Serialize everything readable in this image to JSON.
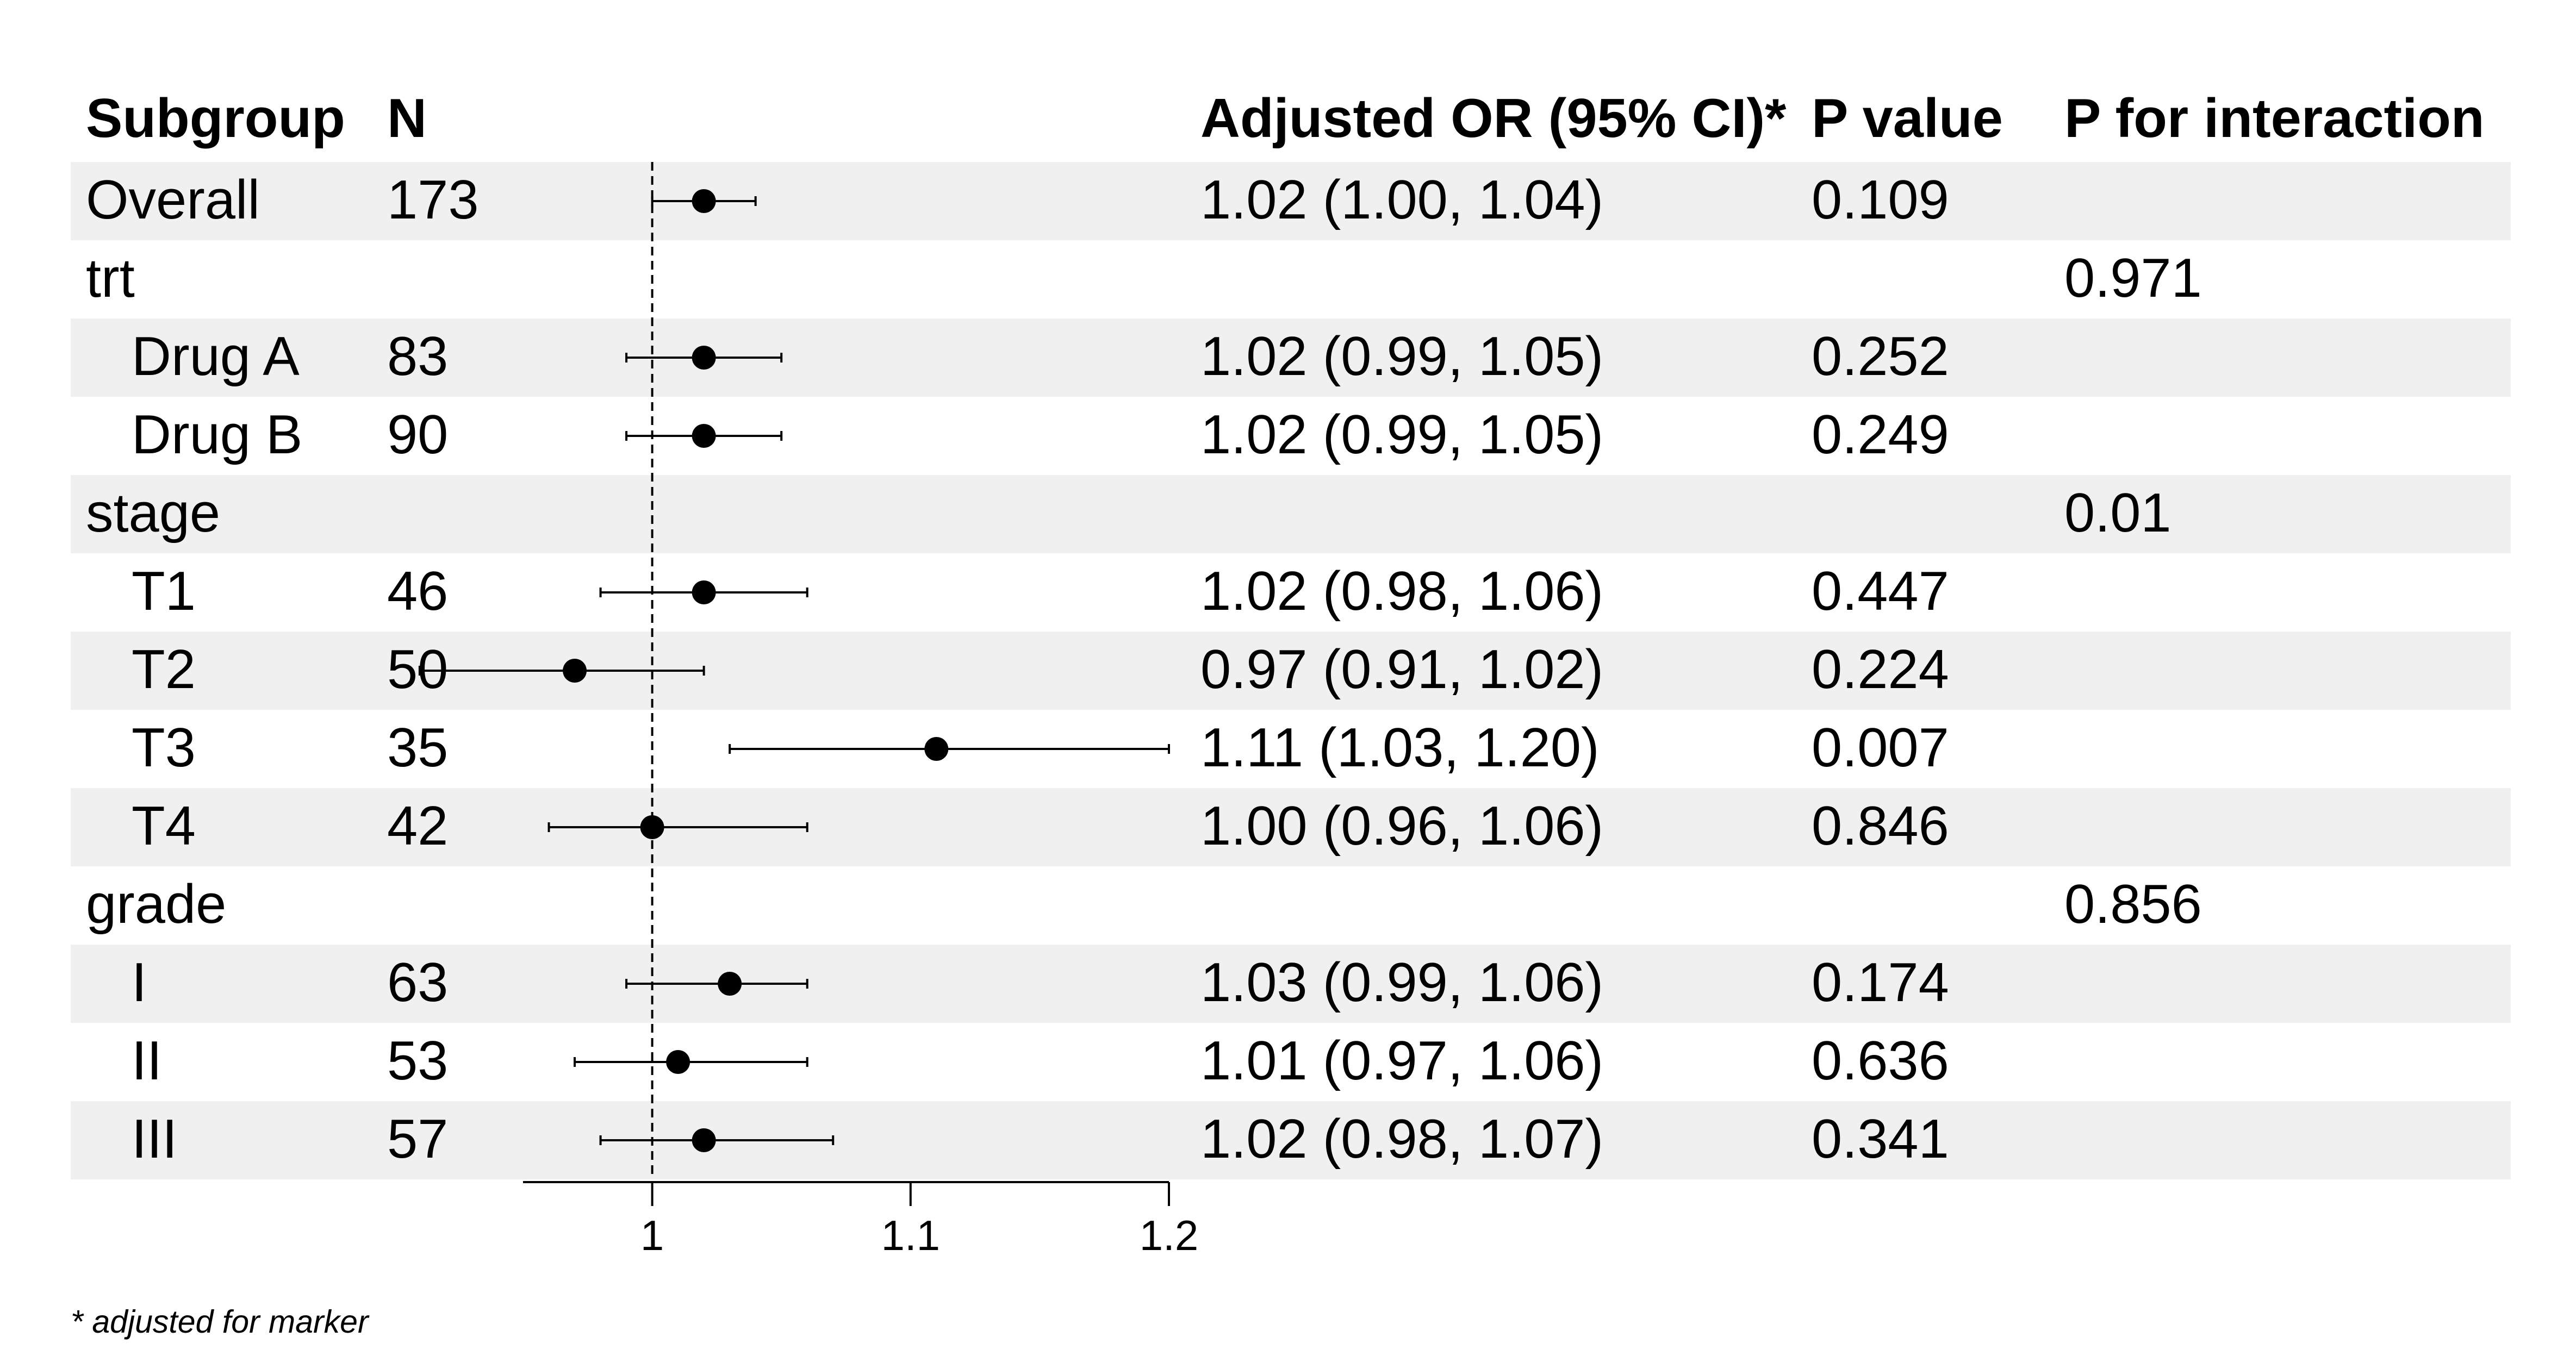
{
  "header": {
    "subgroup": "Subgroup",
    "n": "N",
    "or": "Adjusted OR (95% CI)*",
    "p": "P value",
    "p_interaction": "P for interaction"
  },
  "footnote": "* adjusted for marker",
  "colors": {
    "band": "#eff0ef",
    "ink": "#000000"
  },
  "chart_data": {
    "type": "forest",
    "reference_line": 1,
    "xlim": [
      0.95,
      1.2
    ],
    "xticks": [
      {
        "value": 1,
        "label": "1"
      },
      {
        "value": 1.1,
        "label": "1.1"
      },
      {
        "value": 1.2,
        "label": "1.2"
      }
    ],
    "rows": [
      {
        "label": "Overall",
        "indent": false,
        "n": "173",
        "est": 1.02,
        "lo": 1.0,
        "hi": 1.04,
        "ci_text": "1.02 (1.00, 1.04)",
        "p": "0.109",
        "p_int": ""
      },
      {
        "label": "trt",
        "indent": false,
        "n": "",
        "est": null,
        "lo": null,
        "hi": null,
        "ci_text": "",
        "p": "",
        "p_int": "0.971"
      },
      {
        "label": "Drug A",
        "indent": true,
        "n": "83",
        "est": 1.02,
        "lo": 0.99,
        "hi": 1.05,
        "ci_text": "1.02 (0.99, 1.05)",
        "p": "0.252",
        "p_int": ""
      },
      {
        "label": "Drug B",
        "indent": true,
        "n": "90",
        "est": 1.02,
        "lo": 0.99,
        "hi": 1.05,
        "ci_text": "1.02 (0.99, 1.05)",
        "p": "0.249",
        "p_int": ""
      },
      {
        "label": "stage",
        "indent": false,
        "n": "",
        "est": null,
        "lo": null,
        "hi": null,
        "ci_text": "",
        "p": "",
        "p_int": "0.01"
      },
      {
        "label": "T1",
        "indent": true,
        "n": "46",
        "est": 1.02,
        "lo": 0.98,
        "hi": 1.06,
        "ci_text": "1.02 (0.98, 1.06)",
        "p": "0.447",
        "p_int": ""
      },
      {
        "label": "T2",
        "indent": true,
        "n": "50",
        "est": 0.97,
        "lo": 0.91,
        "hi": 1.02,
        "ci_text": "0.97 (0.91, 1.02)",
        "p": "0.224",
        "p_int": ""
      },
      {
        "label": "T3",
        "indent": true,
        "n": "35",
        "est": 1.11,
        "lo": 1.03,
        "hi": 1.2,
        "ci_text": "1.11 (1.03, 1.20)",
        "p": "0.007",
        "p_int": ""
      },
      {
        "label": "T4",
        "indent": true,
        "n": "42",
        "est": 1.0,
        "lo": 0.96,
        "hi": 1.06,
        "ci_text": "1.00 (0.96, 1.06)",
        "p": "0.846",
        "p_int": ""
      },
      {
        "label": "grade",
        "indent": false,
        "n": "",
        "est": null,
        "lo": null,
        "hi": null,
        "ci_text": "",
        "p": "",
        "p_int": "0.856"
      },
      {
        "label": "I",
        "indent": true,
        "n": "63",
        "est": 1.03,
        "lo": 0.99,
        "hi": 1.06,
        "ci_text": "1.03 (0.99, 1.06)",
        "p": "0.174",
        "p_int": ""
      },
      {
        "label": "II",
        "indent": true,
        "n": "53",
        "est": 1.01,
        "lo": 0.97,
        "hi": 1.06,
        "ci_text": "1.01 (0.97, 1.06)",
        "p": "0.636",
        "p_int": ""
      },
      {
        "label": "III",
        "indent": true,
        "n": "57",
        "est": 1.02,
        "lo": 0.98,
        "hi": 1.07,
        "ci_text": "1.02 (0.98, 1.07)",
        "p": "0.341",
        "p_int": ""
      }
    ]
  }
}
